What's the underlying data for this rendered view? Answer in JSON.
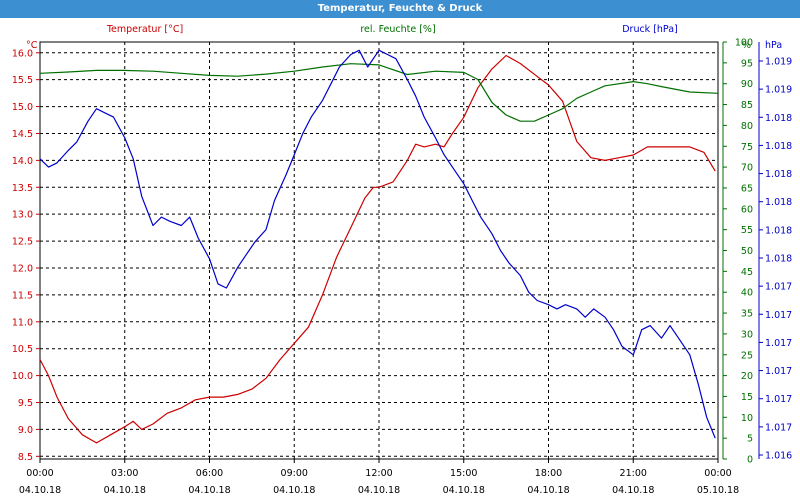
{
  "window": {
    "title": "Temperatur, Feuchte & Druck"
  },
  "colors": {
    "temperature": "#cc0000",
    "humidity": "#007000",
    "pressure": "#0000cc",
    "titlebar": "#3c8fd0"
  },
  "chart_data": {
    "type": "line",
    "title": "Temperatur, Feuchte & Druck",
    "grid": true,
    "x": {
      "range": [
        0,
        24
      ],
      "ticks": [
        {
          "v": 0,
          "time": "00:00",
          "date": "04.10.18"
        },
        {
          "v": 3,
          "time": "03:00",
          "date": "04.10.18"
        },
        {
          "v": 6,
          "time": "06:00",
          "date": "04.10.18"
        },
        {
          "v": 9,
          "time": "09:00",
          "date": "04.10.18"
        },
        {
          "v": 12,
          "time": "12:00",
          "date": "04.10.18"
        },
        {
          "v": 15,
          "time": "15:00",
          "date": "04.10.18"
        },
        {
          "v": 18,
          "time": "18:00",
          "date": "04.10.18"
        },
        {
          "v": 21,
          "time": "21:00",
          "date": "04.10.18"
        },
        {
          "v": 24,
          "time": "00:00",
          "date": "05.10.18"
        }
      ]
    },
    "axes": {
      "left": {
        "unit": "°C",
        "range": [
          8.45,
          16.2
        ],
        "ticks": [
          "8.5",
          "9.0",
          "9.5",
          "10.0",
          "10.5",
          "11.0",
          "11.5",
          "12.0",
          "12.5",
          "13.0",
          "13.5",
          "14.0",
          "14.5",
          "15.0",
          "15.5",
          "16.0"
        ]
      },
      "right1": {
        "unit": "%",
        "range": [
          0,
          100
        ],
        "ticks": [
          "0",
          "5",
          "10",
          "15",
          "20",
          "25",
          "30",
          "35",
          "40",
          "45",
          "50",
          "55",
          "60",
          "65",
          "70",
          "75",
          "80",
          "85",
          "90",
          "95",
          "100"
        ]
      },
      "right2": {
        "unit": "hPa",
        "range": [
          0,
          1
        ],
        "ticks": [
          "1.016",
          "1.017",
          "1.017",
          "1.017",
          "1.017",
          "1.017",
          "1.017",
          "1.018",
          "1.018",
          "1.018",
          "1.018",
          "1.018",
          "1.018",
          "1.019",
          "1.019"
        ]
      }
    },
    "series": [
      {
        "name": "Temperatur [°C]",
        "axis": "left",
        "color": "#cc0000",
        "points": [
          [
            0,
            10.3
          ],
          [
            0.3,
            10.0
          ],
          [
            0.6,
            9.6
          ],
          [
            1,
            9.2
          ],
          [
            1.5,
            8.9
          ],
          [
            2,
            8.75
          ],
          [
            2.5,
            8.9
          ],
          [
            3,
            9.05
          ],
          [
            3.3,
            9.15
          ],
          [
            3.6,
            9.0
          ],
          [
            4,
            9.1
          ],
          [
            4.5,
            9.3
          ],
          [
            5,
            9.4
          ],
          [
            5.5,
            9.55
          ],
          [
            6,
            9.6
          ],
          [
            6.5,
            9.6
          ],
          [
            7,
            9.65
          ],
          [
            7.5,
            9.75
          ],
          [
            8,
            9.95
          ],
          [
            8.5,
            10.3
          ],
          [
            9,
            10.6
          ],
          [
            9.5,
            10.9
          ],
          [
            10,
            11.5
          ],
          [
            10.5,
            12.2
          ],
          [
            11,
            12.75
          ],
          [
            11.5,
            13.3
          ],
          [
            11.8,
            13.5
          ],
          [
            12,
            13.5
          ],
          [
            12.5,
            13.6
          ],
          [
            13,
            14.0
          ],
          [
            13.3,
            14.3
          ],
          [
            13.6,
            14.25
          ],
          [
            14,
            14.3
          ],
          [
            14.3,
            14.25
          ],
          [
            14.6,
            14.5
          ],
          [
            15,
            14.8
          ],
          [
            15.5,
            15.35
          ],
          [
            16,
            15.7
          ],
          [
            16.5,
            15.95
          ],
          [
            17,
            15.8
          ],
          [
            17.5,
            15.6
          ],
          [
            18,
            15.4
          ],
          [
            18.5,
            15.1
          ],
          [
            19,
            14.35
          ],
          [
            19.5,
            14.05
          ],
          [
            20,
            14.0
          ],
          [
            20.5,
            14.05
          ],
          [
            21,
            14.1
          ],
          [
            21.5,
            14.25
          ],
          [
            22,
            14.25
          ],
          [
            22.5,
            14.25
          ],
          [
            23,
            14.25
          ],
          [
            23.5,
            14.15
          ],
          [
            23.9,
            13.8
          ]
        ]
      },
      {
        "name": "rel. Feuchte [%]",
        "axis": "right1",
        "color": "#007000",
        "points": [
          [
            0,
            92.5
          ],
          [
            1,
            92.8
          ],
          [
            2,
            93.2
          ],
          [
            3,
            93.2
          ],
          [
            4,
            93.0
          ],
          [
            5,
            92.5
          ],
          [
            6,
            92
          ],
          [
            7,
            91.8
          ],
          [
            8,
            92.3
          ],
          [
            9,
            93
          ],
          [
            10,
            94
          ],
          [
            11,
            94.8
          ],
          [
            12,
            94.5
          ],
          [
            13,
            92.2
          ],
          [
            14,
            93
          ],
          [
            15,
            92.7
          ],
          [
            15.5,
            91
          ],
          [
            16,
            85.5
          ],
          [
            16.5,
            82.5
          ],
          [
            17,
            81
          ],
          [
            17.5,
            81
          ],
          [
            18,
            82.5
          ],
          [
            18.5,
            84
          ],
          [
            19,
            86.5
          ],
          [
            19.5,
            88
          ],
          [
            20,
            89.5
          ],
          [
            21,
            90.5
          ],
          [
            21.5,
            90
          ],
          [
            22,
            89.3
          ],
          [
            23,
            88
          ],
          [
            24,
            87.7
          ]
        ]
      },
      {
        "name": "Druck [hPa]",
        "axis": "right2",
        "color": "#0000cc",
        "points": [
          [
            0,
            0.72
          ],
          [
            0.3,
            0.7
          ],
          [
            0.6,
            0.71
          ],
          [
            1,
            0.74
          ],
          [
            1.3,
            0.76
          ],
          [
            1.7,
            0.81
          ],
          [
            2,
            0.84
          ],
          [
            2.3,
            0.83
          ],
          [
            2.6,
            0.82
          ],
          [
            3,
            0.77
          ],
          [
            3.3,
            0.72
          ],
          [
            3.6,
            0.63
          ],
          [
            4,
            0.56
          ],
          [
            4.3,
            0.58
          ],
          [
            4.6,
            0.57
          ],
          [
            5,
            0.56
          ],
          [
            5.3,
            0.58
          ],
          [
            5.6,
            0.53
          ],
          [
            6,
            0.48
          ],
          [
            6.3,
            0.42
          ],
          [
            6.6,
            0.41
          ],
          [
            7,
            0.46
          ],
          [
            7.3,
            0.49
          ],
          [
            7.6,
            0.52
          ],
          [
            8,
            0.55
          ],
          [
            8.3,
            0.62
          ],
          [
            8.7,
            0.68
          ],
          [
            9,
            0.73
          ],
          [
            9.3,
            0.78
          ],
          [
            9.6,
            0.82
          ],
          [
            10,
            0.86
          ],
          [
            10.3,
            0.9
          ],
          [
            10.6,
            0.94
          ],
          [
            11,
            0.97
          ],
          [
            11.3,
            0.98
          ],
          [
            11.6,
            0.94
          ],
          [
            12,
            0.98
          ],
          [
            12.3,
            0.97
          ],
          [
            12.6,
            0.96
          ],
          [
            13,
            0.91
          ],
          [
            13.3,
            0.87
          ],
          [
            13.6,
            0.82
          ],
          [
            14,
            0.77
          ],
          [
            14.3,
            0.73
          ],
          [
            14.6,
            0.7
          ],
          [
            15,
            0.66
          ],
          [
            15.3,
            0.62
          ],
          [
            15.6,
            0.58
          ],
          [
            16,
            0.54
          ],
          [
            16.3,
            0.5
          ],
          [
            16.6,
            0.47
          ],
          [
            17,
            0.44
          ],
          [
            17.3,
            0.4
          ],
          [
            17.6,
            0.38
          ],
          [
            18,
            0.37
          ],
          [
            18.3,
            0.36
          ],
          [
            18.6,
            0.37
          ],
          [
            19,
            0.36
          ],
          [
            19.3,
            0.34
          ],
          [
            19.6,
            0.36
          ],
          [
            20,
            0.34
          ],
          [
            20.3,
            0.31
          ],
          [
            20.6,
            0.27
          ],
          [
            21,
            0.25
          ],
          [
            21.3,
            0.31
          ],
          [
            21.6,
            0.32
          ],
          [
            22,
            0.29
          ],
          [
            22.3,
            0.32
          ],
          [
            22.6,
            0.29
          ],
          [
            23,
            0.25
          ],
          [
            23.3,
            0.18
          ],
          [
            23.6,
            0.1
          ],
          [
            23.9,
            0.05
          ]
        ]
      }
    ]
  }
}
